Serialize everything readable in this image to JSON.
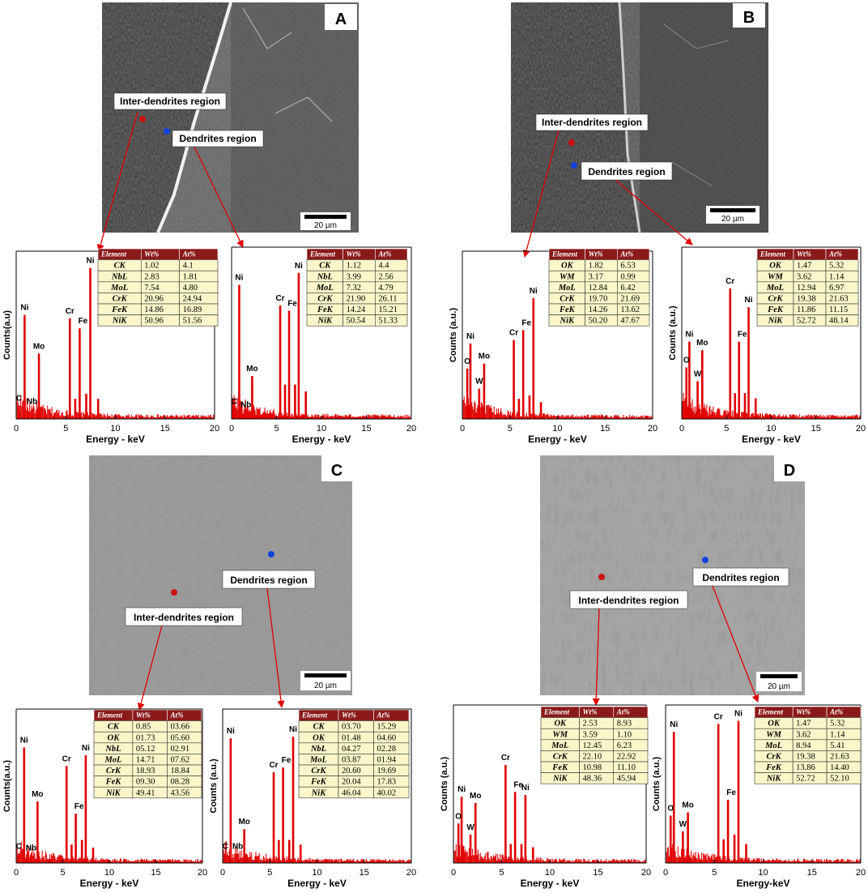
{
  "panel_letters": [
    "A",
    "B",
    "C",
    "D"
  ],
  "scale_bar_label": "20 µm",
  "region_labels": {
    "inter": "Inter-dendrites region",
    "dendrite": "Dendrites region"
  },
  "table_headers": [
    "Element",
    "Wt%",
    "At%"
  ],
  "colors": {
    "spectrum": "#e00000",
    "table_header": "#8b1a1a",
    "table_cell": "#fbf6c9",
    "inter_marker": "#cc1111",
    "dendrite_marker": "#1144dd"
  },
  "chart_data": [
    {
      "id": "A-inter",
      "type": "bar",
      "xlabel": "Energy - keV",
      "ylabel": "Counts(a.u)",
      "xlim": [
        0,
        20
      ],
      "xticks": [
        0,
        5,
        10,
        15,
        20
      ],
      "peaks": [
        {
          "x": 0.28,
          "h": 0.08,
          "label": "C"
        },
        {
          "x": 0.85,
          "h": 0.62,
          "label": "Ni"
        },
        {
          "x": 1.6,
          "h": 0.06,
          "label": "Nb"
        },
        {
          "x": 2.29,
          "h": 0.39,
          "label": "Mo"
        },
        {
          "x": 5.41,
          "h": 0.6,
          "label": "Cr"
        },
        {
          "x": 6.4,
          "h": 0.54,
          "label": "Fe"
        },
        {
          "x": 7.47,
          "h": 0.9,
          "label": "Ni"
        },
        {
          "x": 5.95,
          "h": 0.12,
          "label": ""
        },
        {
          "x": 7.06,
          "h": 0.15,
          "label": ""
        },
        {
          "x": 8.26,
          "h": 0.12,
          "label": ""
        }
      ],
      "table": [
        [
          "CK",
          "1.02",
          "4.1"
        ],
        [
          "NbL",
          "2.83",
          "1.81"
        ],
        [
          "MoL",
          "7.54",
          "4.80"
        ],
        [
          "CrK",
          "20.96",
          "24.94"
        ],
        [
          "FeK",
          "14.86",
          "16.89"
        ],
        [
          "NiK",
          "50.96",
          "51.56"
        ]
      ]
    },
    {
      "id": "A-dendrite",
      "type": "bar",
      "xlabel": "Energy - keV",
      "ylabel": "",
      "xlim": [
        0,
        20
      ],
      "xticks": [
        0,
        5,
        10,
        15,
        20
      ],
      "peaks": [
        {
          "x": 0.28,
          "h": 0.06,
          "label": "C"
        },
        {
          "x": 0.85,
          "h": 0.78,
          "label": "Ni"
        },
        {
          "x": 1.6,
          "h": 0.04,
          "label": "Nb"
        },
        {
          "x": 2.29,
          "h": 0.25,
          "label": "Mo"
        },
        {
          "x": 5.41,
          "h": 0.66,
          "label": "Cr"
        },
        {
          "x": 6.4,
          "h": 0.63,
          "label": "Fe"
        },
        {
          "x": 7.47,
          "h": 0.85,
          "label": "Ni"
        },
        {
          "x": 5.95,
          "h": 0.2,
          "label": ""
        },
        {
          "x": 7.06,
          "h": 0.2,
          "label": ""
        },
        {
          "x": 8.26,
          "h": 0.16,
          "label": ""
        }
      ],
      "table": [
        [
          "CK",
          "1.12",
          "4.4"
        ],
        [
          "NbL",
          "3.99",
          "2.56"
        ],
        [
          "MoL",
          "7.32",
          "4.79"
        ],
        [
          "CrK",
          "21.90",
          "26.11"
        ],
        [
          "FeK",
          "14.24",
          "15.21"
        ],
        [
          "NiK",
          "50.54",
          "51.33"
        ]
      ]
    },
    {
      "id": "B-inter",
      "type": "bar",
      "xlabel": "Energy - keV",
      "ylabel": "Counts (a.u.)",
      "xlim": [
        0,
        20
      ],
      "xticks": [
        0,
        5,
        10,
        15,
        20
      ],
      "peaks": [
        {
          "x": 0.52,
          "h": 0.3,
          "label": "O"
        },
        {
          "x": 0.85,
          "h": 0.45,
          "label": "Ni"
        },
        {
          "x": 1.77,
          "h": 0.18,
          "label": "W"
        },
        {
          "x": 2.29,
          "h": 0.33,
          "label": "Mo"
        },
        {
          "x": 5.41,
          "h": 0.47,
          "label": "Cr"
        },
        {
          "x": 6.4,
          "h": 0.53,
          "label": "Fe"
        },
        {
          "x": 7.47,
          "h": 0.72,
          "label": "Ni"
        },
        {
          "x": 5.95,
          "h": 0.12,
          "label": ""
        },
        {
          "x": 7.06,
          "h": 0.14,
          "label": ""
        },
        {
          "x": 8.26,
          "h": 0.1,
          "label": ""
        }
      ],
      "table": [
        [
          "OK",
          "1.82",
          "6.53"
        ],
        [
          "WM",
          "3.17",
          "0.99"
        ],
        [
          "MoL",
          "12.84",
          "6.42"
        ],
        [
          "CrK",
          "19.70",
          "21.69"
        ],
        [
          "FeK",
          "14.26",
          "13.62"
        ],
        [
          "NiK",
          "50.20",
          "47.67"
        ]
      ]
    },
    {
      "id": "B-dendrite",
      "type": "bar",
      "xlabel": "Energy - keV",
      "ylabel": "Counts (a.u.)",
      "xlim": [
        0,
        20
      ],
      "xticks": [
        0,
        5,
        10,
        15,
        20
      ],
      "peaks": [
        {
          "x": 0.52,
          "h": 0.3,
          "label": "O"
        },
        {
          "x": 0.85,
          "h": 0.45,
          "label": "Ni"
        },
        {
          "x": 1.77,
          "h": 0.22,
          "label": "W"
        },
        {
          "x": 2.29,
          "h": 0.4,
          "label": "Mo"
        },
        {
          "x": 5.41,
          "h": 0.76,
          "label": "Cr"
        },
        {
          "x": 6.4,
          "h": 0.45,
          "label": "Fe"
        },
        {
          "x": 7.47,
          "h": 0.65,
          "label": "Ni"
        },
        {
          "x": 5.95,
          "h": 0.15,
          "label": ""
        },
        {
          "x": 7.06,
          "h": 0.15,
          "label": ""
        },
        {
          "x": 8.26,
          "h": 0.12,
          "label": ""
        }
      ],
      "table": [
        [
          "OK",
          "1.47",
          "5.32"
        ],
        [
          "WM",
          "3.62",
          "1.14"
        ],
        [
          "MoL",
          "12.94",
          "6.97"
        ],
        [
          "CrK",
          "19.38",
          "21.63"
        ],
        [
          "FeK",
          "11.86",
          "11.15"
        ],
        [
          "NiK",
          "52.72",
          "48.14"
        ]
      ]
    },
    {
      "id": "C-inter",
      "type": "bar",
      "xlabel": "Energy - keV",
      "ylabel": "Counts(a.u.)",
      "xlim": [
        0,
        20
      ],
      "xticks": [
        0,
        5,
        10,
        15,
        20
      ],
      "peaks": [
        {
          "x": 0.28,
          "h": 0.06,
          "label": "C"
        },
        {
          "x": 0.85,
          "h": 0.75,
          "label": "Ni"
        },
        {
          "x": 1.6,
          "h": 0.05,
          "label": "Nb"
        },
        {
          "x": 2.29,
          "h": 0.4,
          "label": "Mo"
        },
        {
          "x": 5.41,
          "h": 0.63,
          "label": "Cr"
        },
        {
          "x": 6.4,
          "h": 0.32,
          "label": "Fe"
        },
        {
          "x": 7.47,
          "h": 0.7,
          "label": "Ni"
        },
        {
          "x": 5.95,
          "h": 0.12,
          "label": ""
        },
        {
          "x": 7.06,
          "h": 0.15,
          "label": ""
        },
        {
          "x": 8.26,
          "h": 0.1,
          "label": ""
        }
      ],
      "table": [
        [
          "CK",
          "0.85",
          "03.66"
        ],
        [
          "OK",
          "01.73",
          "05.60"
        ],
        [
          "NbL",
          "05.12",
          "02.91"
        ],
        [
          "MoL",
          "14.71",
          "07.62"
        ],
        [
          "CrK",
          "18.93",
          "18.84"
        ],
        [
          "FeK",
          "09.30",
          "08.28"
        ],
        [
          "NiK",
          "49.41",
          "43.56"
        ]
      ]
    },
    {
      "id": "C-dendrite",
      "type": "bar",
      "xlabel": "Energy - keV",
      "ylabel": "Counts (a.u.)",
      "xlim": [
        0,
        20
      ],
      "xticks": [
        0,
        5,
        10,
        15,
        20
      ],
      "peaks": [
        {
          "x": 0.28,
          "h": 0.06,
          "label": "C"
        },
        {
          "x": 0.85,
          "h": 0.81,
          "label": "Ni"
        },
        {
          "x": 1.6,
          "h": 0.06,
          "label": "Nb"
        },
        {
          "x": 2.29,
          "h": 0.22,
          "label": "Mo"
        },
        {
          "x": 5.41,
          "h": 0.59,
          "label": "Cr"
        },
        {
          "x": 6.4,
          "h": 0.62,
          "label": "Fe"
        },
        {
          "x": 7.47,
          "h": 0.82,
          "label": "Ni"
        },
        {
          "x": 5.95,
          "h": 0.15,
          "label": ""
        },
        {
          "x": 7.06,
          "h": 0.15,
          "label": ""
        },
        {
          "x": 8.26,
          "h": 0.12,
          "label": ""
        }
      ],
      "table": [
        [
          "CK",
          "03.70",
          "15.29"
        ],
        [
          "OK",
          "01.48",
          "04.60"
        ],
        [
          "NbL",
          "04.27",
          "02.28"
        ],
        [
          "MoL",
          "03.87",
          "01.94"
        ],
        [
          "CrK",
          "20.60",
          "19.69"
        ],
        [
          "FeK",
          "20.04",
          "17.83"
        ],
        [
          "NiK",
          "46.04",
          "40.02"
        ]
      ]
    },
    {
      "id": "D-inter",
      "type": "bar",
      "xlabel": "Energy - keV",
      "ylabel": "Counts (a.u.)",
      "xlim": [
        0,
        20
      ],
      "xticks": [
        0,
        5,
        10,
        15,
        20
      ],
      "peaks": [
        {
          "x": 0.52,
          "h": 0.25,
          "label": "O"
        },
        {
          "x": 0.85,
          "h": 0.42,
          "label": "Ni"
        },
        {
          "x": 1.77,
          "h": 0.18,
          "label": "W"
        },
        {
          "x": 2.29,
          "h": 0.38,
          "label": "Mo"
        },
        {
          "x": 5.41,
          "h": 0.62,
          "label": "Cr"
        },
        {
          "x": 6.4,
          "h": 0.45,
          "label": "Fe"
        },
        {
          "x": 7.47,
          "h": 0.43,
          "label": "Ni"
        },
        {
          "x": 5.95,
          "h": 0.12,
          "label": ""
        },
        {
          "x": 7.06,
          "h": 0.12,
          "label": ""
        },
        {
          "x": 8.26,
          "h": 0.1,
          "label": ""
        }
      ],
      "table": [
        [
          "OK",
          "2.53",
          "8.93"
        ],
        [
          "WM",
          "3.59",
          "1.10"
        ],
        [
          "MoL",
          "12.45",
          "6.23"
        ],
        [
          "CrK",
          "22.10",
          "22.92"
        ],
        [
          "FeK",
          "10.98",
          "11.10"
        ],
        [
          "NiK",
          "48.36",
          "45.94"
        ]
      ]
    },
    {
      "id": "D-dendrite",
      "type": "bar",
      "xlabel": "Energy-keV",
      "ylabel": "Counts (a.u.)",
      "xlim": [
        0,
        20
      ],
      "xticks": [
        0,
        5,
        10,
        15,
        20
      ],
      "peaks": [
        {
          "x": 0.52,
          "h": 0.3,
          "label": "O"
        },
        {
          "x": 0.85,
          "h": 0.83,
          "label": "Ni"
        },
        {
          "x": 1.77,
          "h": 0.2,
          "label": "W"
        },
        {
          "x": 2.29,
          "h": 0.32,
          "label": "Mo"
        },
        {
          "x": 5.41,
          "h": 0.88,
          "label": "Cr"
        },
        {
          "x": 6.4,
          "h": 0.4,
          "label": "Fe"
        },
        {
          "x": 7.47,
          "h": 0.9,
          "label": "Ni"
        },
        {
          "x": 5.95,
          "h": 0.15,
          "label": ""
        },
        {
          "x": 7.06,
          "h": 0.18,
          "label": ""
        },
        {
          "x": 8.26,
          "h": 0.12,
          "label": ""
        }
      ],
      "table": [
        [
          "OK",
          "1.47",
          "5.32"
        ],
        [
          "WM",
          "3.62",
          "1.14"
        ],
        [
          "MoL",
          "8.94",
          "5.41"
        ],
        [
          "CrK",
          "19.38",
          "21.63"
        ],
        [
          "FeK",
          "13.86",
          "14.40"
        ],
        [
          "NiK",
          "52.72",
          "52.10"
        ]
      ]
    }
  ]
}
